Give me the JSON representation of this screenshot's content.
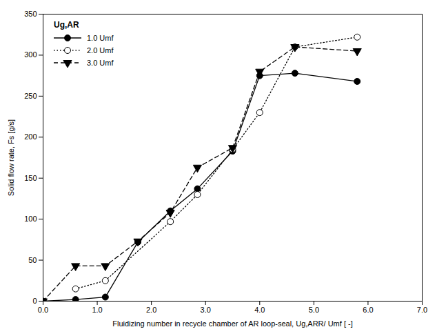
{
  "chart_data": {
    "type": "line",
    "xlabel": "Fluidizing number in recycle chamber of AR loop-seal, Ug,ARR/ Umf [ -]",
    "ylabel": "Solid flow rate, Fs [g/s]",
    "legend_title": "Ug,AR",
    "legend": "upper left",
    "grid": false,
    "xlim": [
      0,
      7
    ],
    "ylim": [
      0,
      350
    ],
    "xticks": [
      0,
      1,
      2,
      3,
      4,
      5,
      6,
      7
    ],
    "yticks": [
      0,
      50,
      100,
      150,
      200,
      250,
      300,
      350
    ],
    "series": [
      {
        "name": "1.0 Umf",
        "color": "black",
        "marker": "circle",
        "line_style": "solid",
        "x": [
          0,
          0.6,
          1.15,
          1.75,
          2.35,
          2.85,
          3.5,
          4.0,
          4.65,
          5.8
        ],
        "values": [
          0,
          2,
          5,
          72,
          110,
          137,
          183,
          275,
          278,
          268
        ]
      },
      {
        "name": "2.0 Umf",
        "color": "black",
        "marker": "circle-open",
        "line_style": "dotted",
        "x": [
          0.6,
          1.15,
          2.35,
          2.85,
          3.5,
          4.0,
          4.65,
          5.8
        ],
        "values": [
          15,
          25,
          97,
          130,
          185,
          230,
          310,
          322
        ]
      },
      {
        "name": "3.0 Umf",
        "color": "black",
        "marker": "triangle-down",
        "line_style": "dashed",
        "x": [
          0,
          0.6,
          1.15,
          1.75,
          2.35,
          2.85,
          3.5,
          4.0,
          4.65,
          5.8
        ],
        "values": [
          0,
          43,
          43,
          73,
          108,
          163,
          187,
          280,
          310,
          305
        ]
      }
    ]
  }
}
